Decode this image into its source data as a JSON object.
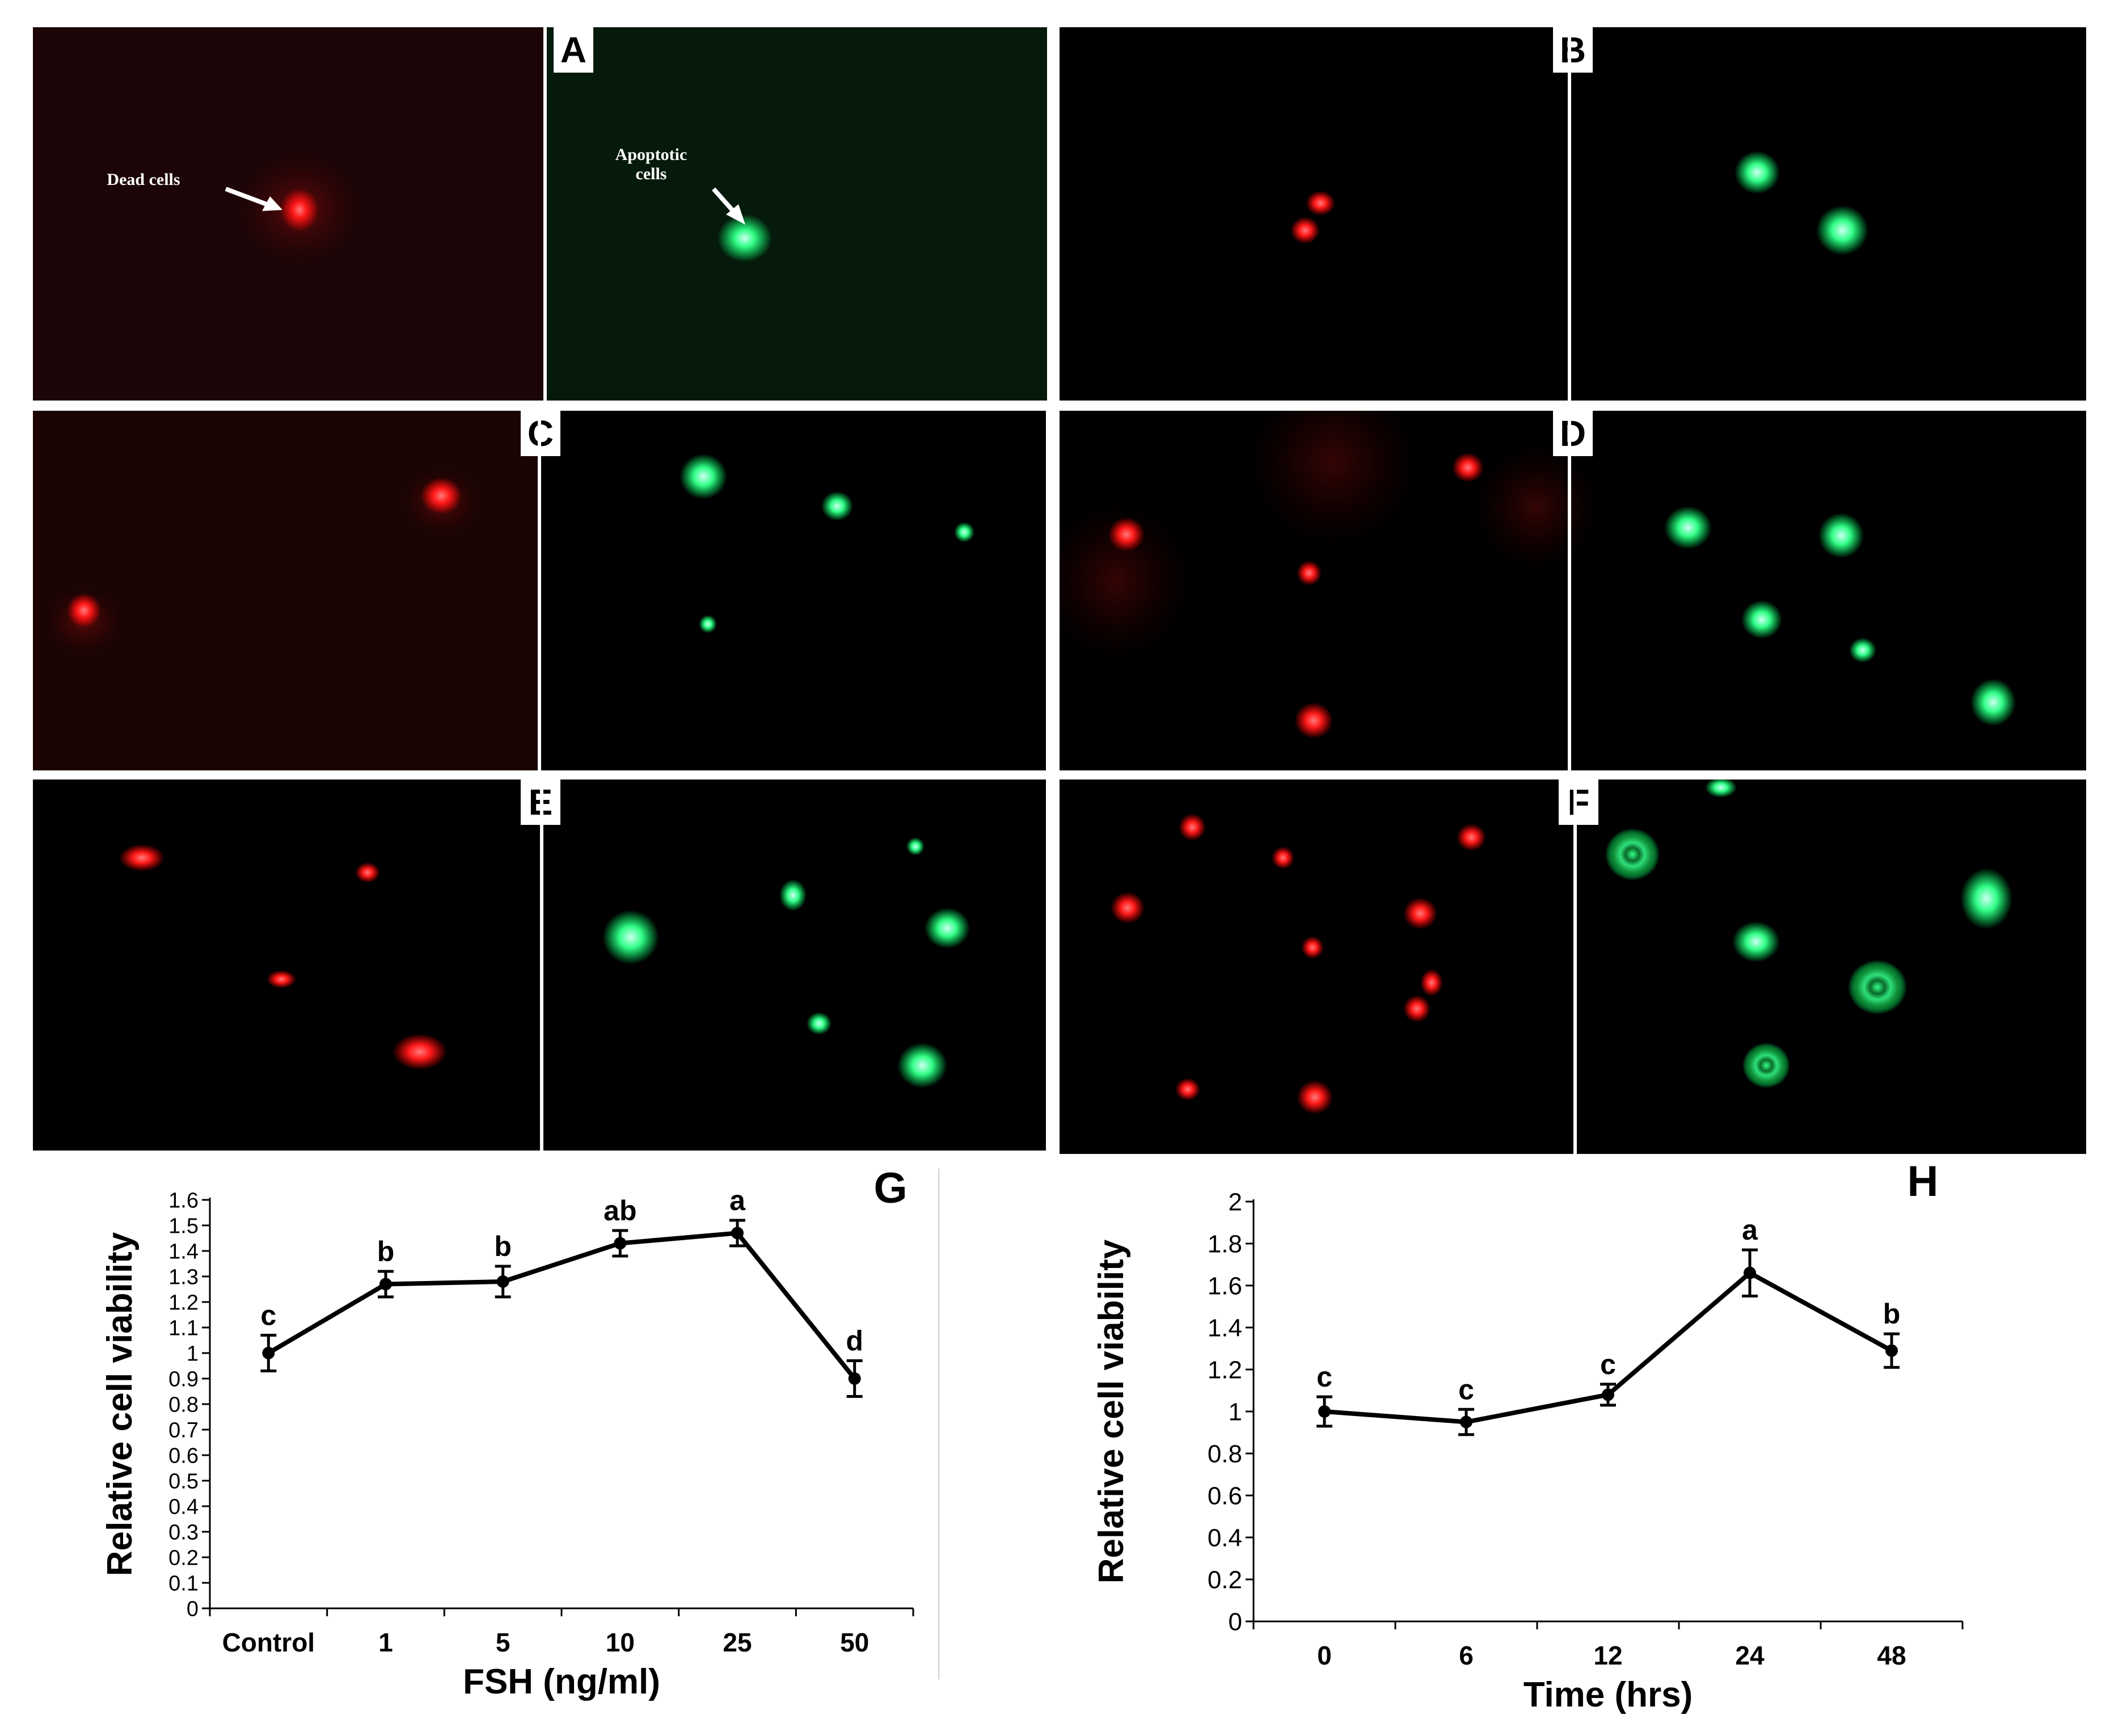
{
  "figure": {
    "panels": [
      {
        "id": "A",
        "label": "A"
      },
      {
        "id": "B",
        "label": "B"
      },
      {
        "id": "C",
        "label": "C"
      },
      {
        "id": "D",
        "label": "D"
      },
      {
        "id": "E",
        "label": "E"
      },
      {
        "id": "F",
        "label": "F"
      }
    ],
    "annotations": {
      "dead_cells": "Dead cells",
      "apoptotic_line1": "Apoptotic",
      "apoptotic_line2": "cells"
    },
    "stain_colors": {
      "dead": "#ff1a1a",
      "apoptotic": "#33ff88"
    }
  },
  "chart_data": [
    {
      "id": "G",
      "panel_label": "G",
      "type": "line",
      "categories": [
        "Control",
        "1",
        "5",
        "10",
        "25",
        "50"
      ],
      "values": [
        1.0,
        1.27,
        1.28,
        1.43,
        1.47,
        0.9
      ],
      "errors": [
        0.07,
        0.05,
        0.06,
        0.05,
        0.05,
        0.07
      ],
      "significance": [
        "c",
        "b",
        "b",
        "ab",
        "a",
        "d"
      ],
      "xlabel": "FSH (ng/ml)",
      "ylabel": "Relative cell viability",
      "ylim": [
        0,
        1.6
      ],
      "yticks": [
        "0",
        "0.1",
        "0.2",
        "0.3",
        "0.4",
        "0.5",
        "0.6",
        "0.7",
        "0.8",
        "0.9",
        "1",
        "1.1",
        "1.2",
        "1.3",
        "1.4",
        "1.5",
        "1.6"
      ]
    },
    {
      "id": "H",
      "panel_label": "H",
      "type": "line",
      "categories": [
        "0",
        "6",
        "12",
        "24",
        "48"
      ],
      "values": [
        1.0,
        0.95,
        1.08,
        1.66,
        1.29
      ],
      "errors": [
        0.07,
        0.06,
        0.05,
        0.11,
        0.08
      ],
      "significance": [
        "c",
        "c",
        "c",
        "a",
        "b"
      ],
      "xlabel": "Time (hrs)",
      "ylabel": "Relative cell viability",
      "ylim": [
        0,
        2
      ],
      "yticks": [
        "0",
        "0.2",
        "0.4",
        "0.6",
        "0.8",
        "1",
        "1.2",
        "1.4",
        "1.6",
        "1.8",
        "2"
      ]
    }
  ]
}
